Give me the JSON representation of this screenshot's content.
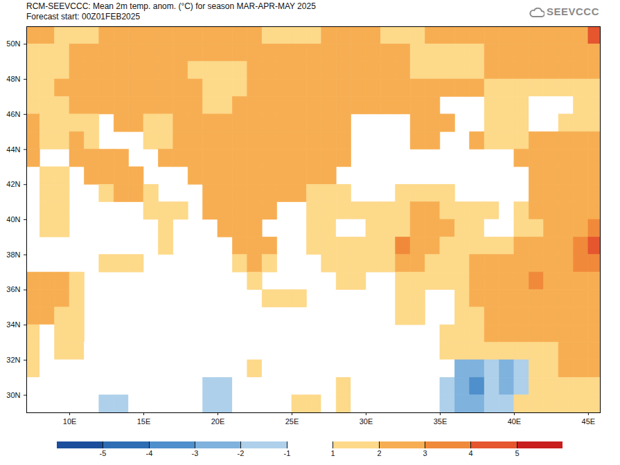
{
  "chart_data": {
    "type": "heatmap",
    "title": "RCM-SEEVCCC: Mean 2m temp. anom. (°C) for season MAR-APR-MAY 2025",
    "subtitle": "Forecast start: 00Z01FEB2025",
    "logo": "SEEVCCC",
    "xlim": [
      7.1,
      45.8
    ],
    "ylim": [
      29,
      51
    ],
    "xticks": [
      {
        "value": 10,
        "label": "10E"
      },
      {
        "value": 15,
        "label": "15E"
      },
      {
        "value": 20,
        "label": "20E"
      },
      {
        "value": 25,
        "label": "25E"
      },
      {
        "value": 30,
        "label": "30E"
      },
      {
        "value": 35,
        "label": "35E"
      },
      {
        "value": 40,
        "label": "40E"
      },
      {
        "value": 45,
        "label": "45E"
      }
    ],
    "yticks": [
      {
        "value": 30,
        "label": "30N"
      },
      {
        "value": 32,
        "label": "32N"
      },
      {
        "value": 34,
        "label": "34N"
      },
      {
        "value": 36,
        "label": "36N"
      },
      {
        "value": 38,
        "label": "38N"
      },
      {
        "value": 40,
        "label": "40N"
      },
      {
        "value": 42,
        "label": "42N"
      },
      {
        "value": 44,
        "label": "44N"
      },
      {
        "value": 46,
        "label": "46N"
      },
      {
        "value": 48,
        "label": "48N"
      },
      {
        "value": 50,
        "label": "50N"
      }
    ],
    "x": [
      7.5,
      8.5,
      9.5,
      10.5,
      11.5,
      12.5,
      13.5,
      14.5,
      15.5,
      16.5,
      17.5,
      18.5,
      19.5,
      20.5,
      21.5,
      22.5,
      23.5,
      24.5,
      25.5,
      26.5,
      27.5,
      28.5,
      29.5,
      30.5,
      31.5,
      32.5,
      33.5,
      34.5,
      35.5,
      36.5,
      37.5,
      38.5,
      39.5,
      40.5,
      41.5,
      42.5,
      43.5,
      44.5,
      45.5
    ],
    "y": [
      50.5,
      49.5,
      48.5,
      47.5,
      46.5,
      45.5,
      44.5,
      43.5,
      42.5,
      41.5,
      40.5,
      39.5,
      38.5,
      37.5,
      36.5,
      35.5,
      34.5,
      33.5,
      32.5,
      31.5,
      30.5,
      29.5
    ],
    "values": [
      [
        2.5,
        2.5,
        1.5,
        1.5,
        1.5,
        2.5,
        2.5,
        2.5,
        2.5,
        2.5,
        2.5,
        2.5,
        2.5,
        2.5,
        2.5,
        2.5,
        1.5,
        1.5,
        1.5,
        1.5,
        2.5,
        2.5,
        2.5,
        2.5,
        1.5,
        1.5,
        1.5,
        2.5,
        2.5,
        2.5,
        2.5,
        2.5,
        2.5,
        2.5,
        2.5,
        2.5,
        2.5,
        2.5,
        4.5
      ],
      [
        1.5,
        1.5,
        1.5,
        2.5,
        2.5,
        2.5,
        2.5,
        2.5,
        2.5,
        2.5,
        2.5,
        2.5,
        2.5,
        2.5,
        2.5,
        2.5,
        2.5,
        2.5,
        2.5,
        2.5,
        2.5,
        2.5,
        2.5,
        2.5,
        2.5,
        2.5,
        1.5,
        1.5,
        1.5,
        1.5,
        1.5,
        2.5,
        2.5,
        2.5,
        2.5,
        2.5,
        2.5,
        2.5,
        2.5
      ],
      [
        1.5,
        1.5,
        1.5,
        2.5,
        2.5,
        2.5,
        2.5,
        2.5,
        2.5,
        2.5,
        2.5,
        1.5,
        1.5,
        1.5,
        1.5,
        2.5,
        2.5,
        2.5,
        2.5,
        2.5,
        2.5,
        2.5,
        2.5,
        2.5,
        2.5,
        2.5,
        1.5,
        1.5,
        1.5,
        1.5,
        1.5,
        2.5,
        2.5,
        2.5,
        2.5,
        2.5,
        2.5,
        2.5,
        2.5
      ],
      [
        1.5,
        1.5,
        2.5,
        2.5,
        2.5,
        2.5,
        2.5,
        2.5,
        2.5,
        2.5,
        2.5,
        2.5,
        1.5,
        1.5,
        1.5,
        2.5,
        2.5,
        2.5,
        2.5,
        2.5,
        2.5,
        2.5,
        2.5,
        2.5,
        2.5,
        2.5,
        2.5,
        2.5,
        2.5,
        2.5,
        2.5,
        1.5,
        1.5,
        1.5,
        1.5,
        1.5,
        1.5,
        1.5,
        1.5
      ],
      [
        1.5,
        1.5,
        1.5,
        2.5,
        2.5,
        2.5,
        2.5,
        2.5,
        2.5,
        2.5,
        2.5,
        2.5,
        1.5,
        1.5,
        2.5,
        2.5,
        2.5,
        2.5,
        2.5,
        2.5,
        2.5,
        2.5,
        2.5,
        2.5,
        2.5,
        2.5,
        2.5,
        2.5,
        null,
        null,
        null,
        1.5,
        1.5,
        1.5,
        0,
        0,
        0,
        1.5,
        1.5
      ],
      [
        2.5,
        1.5,
        1.5,
        1.5,
        1.5,
        null,
        2.5,
        2.5,
        1.5,
        1.5,
        2.5,
        2.5,
        2.5,
        2.5,
        2.5,
        2.5,
        2.5,
        2.5,
        2.5,
        2.5,
        2.5,
        2.5,
        null,
        null,
        null,
        null,
        2.5,
        2.5,
        2.5,
        null,
        null,
        1.5,
        1.5,
        1.5,
        0,
        0,
        1.5,
        1.5,
        1.5
      ],
      [
        2.5,
        1.5,
        1.5,
        2.5,
        1.5,
        null,
        null,
        null,
        1.5,
        1.5,
        2.5,
        2.5,
        2.5,
        2.5,
        2.5,
        2.5,
        2.5,
        2.5,
        2.5,
        2.5,
        2.5,
        2.5,
        null,
        null,
        null,
        null,
        2.5,
        2.5,
        null,
        null,
        2.5,
        1.5,
        1.5,
        1.5,
        2.5,
        2.5,
        2.5,
        2.5,
        2.5
      ],
      [
        2.5,
        null,
        null,
        2.5,
        2.5,
        2.5,
        2.5,
        null,
        null,
        2.5,
        2.5,
        2.5,
        2.5,
        2.5,
        2.5,
        2.5,
        2.5,
        2.5,
        2.5,
        2.5,
        2.5,
        2.5,
        null,
        null,
        null,
        null,
        null,
        null,
        null,
        null,
        null,
        null,
        null,
        2.5,
        2.5,
        2.5,
        2.5,
        2.5,
        2.5
      ],
      [
        null,
        1.5,
        1.5,
        null,
        2.5,
        2.5,
        2.5,
        2.5,
        null,
        null,
        null,
        2.5,
        2.5,
        2.5,
        2.5,
        2.5,
        2.5,
        2.5,
        2.5,
        2.5,
        2.5,
        null,
        null,
        null,
        null,
        null,
        null,
        null,
        null,
        null,
        null,
        null,
        null,
        null,
        2.5,
        2.5,
        2.5,
        2.5,
        2.5
      ],
      [
        null,
        1.5,
        1.5,
        null,
        null,
        1.5,
        2.5,
        2.5,
        1.5,
        null,
        null,
        null,
        2.5,
        2.5,
        2.5,
        2.5,
        2.5,
        2.5,
        2.5,
        1.5,
        1.5,
        1.5,
        null,
        null,
        null,
        1.5,
        1.5,
        1.5,
        1.5,
        null,
        null,
        null,
        null,
        null,
        2.5,
        2.5,
        2.5,
        2.5,
        2.5
      ],
      [
        null,
        1.5,
        1.5,
        null,
        null,
        null,
        null,
        null,
        1.5,
        1.5,
        1.5,
        null,
        2.5,
        2.5,
        2.5,
        2.5,
        2.5,
        null,
        null,
        1.5,
        1.5,
        1.5,
        1.5,
        1.5,
        1.5,
        1.5,
        2.5,
        2.5,
        1.5,
        1.5,
        1.5,
        1.5,
        0,
        1.5,
        2.5,
        2.5,
        2.5,
        2.5,
        2.5
      ],
      [
        null,
        1.5,
        1.5,
        null,
        null,
        null,
        null,
        null,
        null,
        1.5,
        null,
        null,
        null,
        2.5,
        2.5,
        2.5,
        null,
        null,
        null,
        1.5,
        1.5,
        0,
        0,
        1.5,
        1.5,
        1.5,
        2.5,
        2.5,
        2.5,
        1.5,
        1.5,
        0,
        0,
        1.5,
        1.5,
        2.5,
        2.5,
        2.5,
        3.5
      ],
      [
        null,
        null,
        null,
        null,
        null,
        null,
        null,
        null,
        null,
        1.5,
        null,
        null,
        null,
        null,
        2.5,
        2.5,
        2.5,
        null,
        null,
        1.5,
        1.5,
        1.5,
        1.5,
        1.5,
        1.5,
        3.5,
        2.5,
        2.5,
        1.5,
        1.5,
        1.5,
        1.5,
        1.5,
        2.5,
        2.5,
        2.5,
        2.5,
        3.5,
        4.5
      ],
      [
        null,
        null,
        null,
        null,
        null,
        1.5,
        1.5,
        1.5,
        null,
        null,
        null,
        null,
        null,
        null,
        1.5,
        2.5,
        1.5,
        null,
        null,
        null,
        1.5,
        1.5,
        1.5,
        1.5,
        1.5,
        2.5,
        2.5,
        1.5,
        1.5,
        1.5,
        2.5,
        2.5,
        2.5,
        2.5,
        2.5,
        2.5,
        2.5,
        3.5,
        3.5
      ],
      [
        2.5,
        2.5,
        2.5,
        1.5,
        null,
        null,
        null,
        null,
        null,
        null,
        null,
        null,
        null,
        null,
        null,
        1.5,
        null,
        null,
        null,
        null,
        null,
        1.5,
        1.5,
        null,
        null,
        1.5,
        1.5,
        1.5,
        1.5,
        1.5,
        2.5,
        2.5,
        2.5,
        2.5,
        3.5,
        2.5,
        2.5,
        2.5,
        2.5
      ],
      [
        2.5,
        2.5,
        2.5,
        1.5,
        null,
        null,
        null,
        null,
        null,
        null,
        null,
        null,
        null,
        null,
        null,
        null,
        1.5,
        1.5,
        1.5,
        null,
        null,
        null,
        null,
        null,
        null,
        1.5,
        1.5,
        null,
        null,
        1.5,
        2.5,
        2.5,
        2.5,
        2.5,
        2.5,
        2.5,
        2.5,
        2.5,
        2.5
      ],
      [
        2.5,
        2.5,
        1.5,
        1.5,
        null,
        null,
        null,
        null,
        null,
        null,
        null,
        null,
        null,
        null,
        null,
        null,
        null,
        null,
        null,
        null,
        null,
        null,
        null,
        null,
        null,
        1.5,
        1.5,
        null,
        null,
        1.5,
        1.5,
        2.5,
        2.5,
        2.5,
        2.5,
        2.5,
        2.5,
        2.5,
        2.5
      ],
      [
        1.5,
        0,
        1.5,
        1.5,
        null,
        null,
        null,
        null,
        null,
        null,
        null,
        null,
        null,
        null,
        null,
        null,
        null,
        null,
        null,
        null,
        null,
        null,
        null,
        null,
        null,
        null,
        null,
        null,
        1.5,
        1.5,
        1.5,
        2.5,
        2.5,
        2.5,
        2.5,
        2.5,
        2.5,
        2.5,
        2.5
      ],
      [
        1.5,
        0,
        1.5,
        1.5,
        0,
        0,
        0,
        0,
        null,
        null,
        null,
        null,
        null,
        null,
        0,
        0,
        null,
        null,
        null,
        null,
        null,
        null,
        null,
        null,
        null,
        null,
        null,
        null,
        1.5,
        1.5,
        1.5,
        1.5,
        1.5,
        1.5,
        1.5,
        1.5,
        2.5,
        2.5,
        2.5
      ],
      [
        1.5,
        0,
        0,
        0,
        0,
        0,
        0,
        0,
        0,
        0,
        null,
        null,
        null,
        0,
        0,
        1.5,
        0,
        0,
        0,
        0,
        0,
        null,
        null,
        0,
        0,
        null,
        0,
        0,
        0,
        -2.5,
        -2.5,
        -1.5,
        -2.5,
        -1.5,
        1.5,
        1.5,
        2.5,
        2.5,
        2.5
      ],
      [
        0,
        0,
        0,
        0,
        0,
        0,
        0,
        0,
        0,
        0,
        0,
        0,
        -1.5,
        -1.5,
        0,
        0,
        0,
        0,
        0,
        0,
        0,
        1.5,
        0,
        0,
        0,
        0,
        0,
        0,
        -1.5,
        -2.5,
        -3.5,
        -1.5,
        -2.5,
        -1.5,
        1.5,
        1.5,
        1.5,
        1.5,
        1.5
      ],
      [
        0,
        0,
        0,
        0,
        0,
        -1.5,
        -1.5,
        0,
        0,
        0,
        0,
        0,
        -1.5,
        -1.5,
        0,
        0,
        0,
        0,
        1.5,
        1.5,
        0,
        1.5,
        0,
        0,
        0,
        0,
        0,
        0,
        -1.5,
        -2.5,
        -2.5,
        -1.5,
        -1.5,
        1.5,
        1.5,
        1.5,
        1.5,
        1.5,
        1.5
      ]
    ],
    "colorbar": {
      "ticks": [
        -5,
        -4,
        -3,
        -2,
        -1,
        1,
        2,
        3,
        4,
        5
      ],
      "colors": [
        "#1b4f9c",
        "#2e6db4",
        "#4f8fcb",
        "#7fb2dd",
        "#aed0ea",
        "#ffffff",
        "#fdd98a",
        "#f7ae52",
        "#f08a3a",
        "#e5552e",
        "#c81e1e"
      ]
    }
  }
}
